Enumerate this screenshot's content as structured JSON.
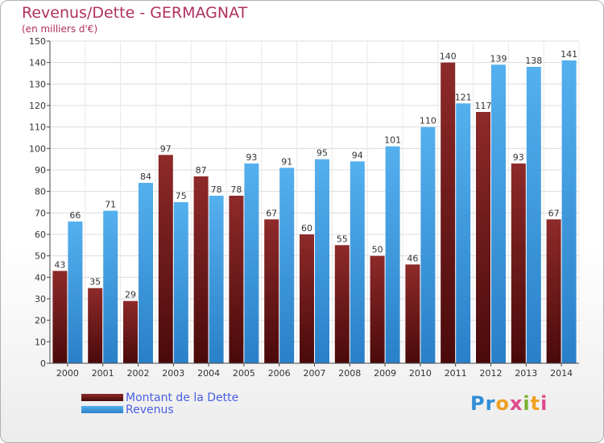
{
  "title": "Revenus/Dette - GERMAGNAT",
  "subtitle": "(en milliers d'€)",
  "colors": {
    "debt": "#7a1c1c",
    "revenue": "#3a9be0"
  },
  "logo_text": "Proxiti",
  "chart_data": {
    "type": "bar",
    "title": "Revenus/Dette - GERMAGNAT",
    "subtitle": "(en milliers d'€)",
    "categories": [
      "2000",
      "2001",
      "2002",
      "2003",
      "2004",
      "2005",
      "2006",
      "2007",
      "2008",
      "2009",
      "2010",
      "2011",
      "2012",
      "2013",
      "2014"
    ],
    "series": [
      {
        "name": "Montant de la Dette",
        "values": [
          43,
          35,
          29,
          97,
          87,
          78,
          67,
          60,
          55,
          50,
          46,
          140,
          117,
          93,
          67
        ]
      },
      {
        "name": "Revenus",
        "values": [
          66,
          71,
          84,
          75,
          78,
          93,
          91,
          95,
          94,
          101,
          110,
          121,
          139,
          138,
          141
        ]
      }
    ],
    "ylim": [
      0,
      150
    ],
    "yticks": [
      0,
      10,
      20,
      30,
      40,
      50,
      60,
      70,
      80,
      90,
      100,
      110,
      120,
      130,
      140,
      150
    ],
    "grid": true,
    "legend": "bottom-left"
  }
}
